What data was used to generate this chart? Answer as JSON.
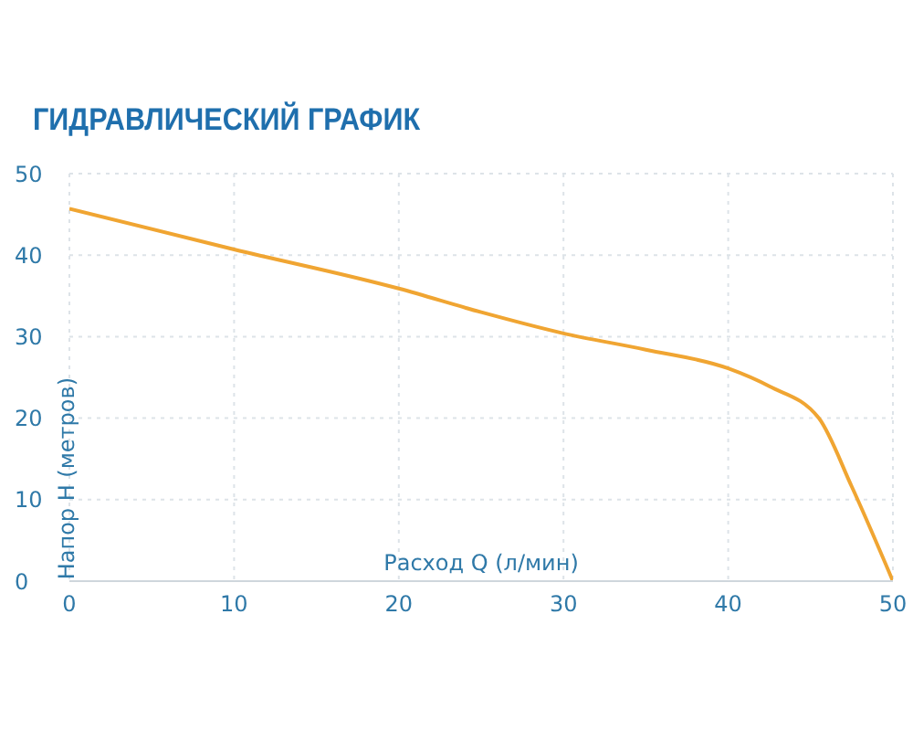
{
  "chart_data": {
    "type": "line",
    "title": "ГИДРАВЛИЧЕСКИЙ ГРАФИК",
    "xlabel": "Расход Q (л/мин)",
    "ylabel": "Напор H (метров)",
    "x": [
      0,
      10,
      20,
      25,
      30,
      35,
      40,
      42.5,
      45.5,
      47.5,
      50
    ],
    "series": [
      {
        "color": "#f0a532",
        "values": [
          45.7,
          40.7,
          35.9,
          33,
          30.4,
          28.4,
          26.1,
          23.9,
          20,
          11.6,
          0
        ]
      }
    ],
    "xlim": [
      0,
      50
    ],
    "xticks": [
      0,
      10,
      20,
      30,
      40,
      50
    ],
    "ylim": [
      0,
      50
    ],
    "yticks": [
      0,
      10,
      20,
      30,
      40,
      50
    ],
    "grid": true,
    "marker": "none",
    "line_style": "solid"
  }
}
